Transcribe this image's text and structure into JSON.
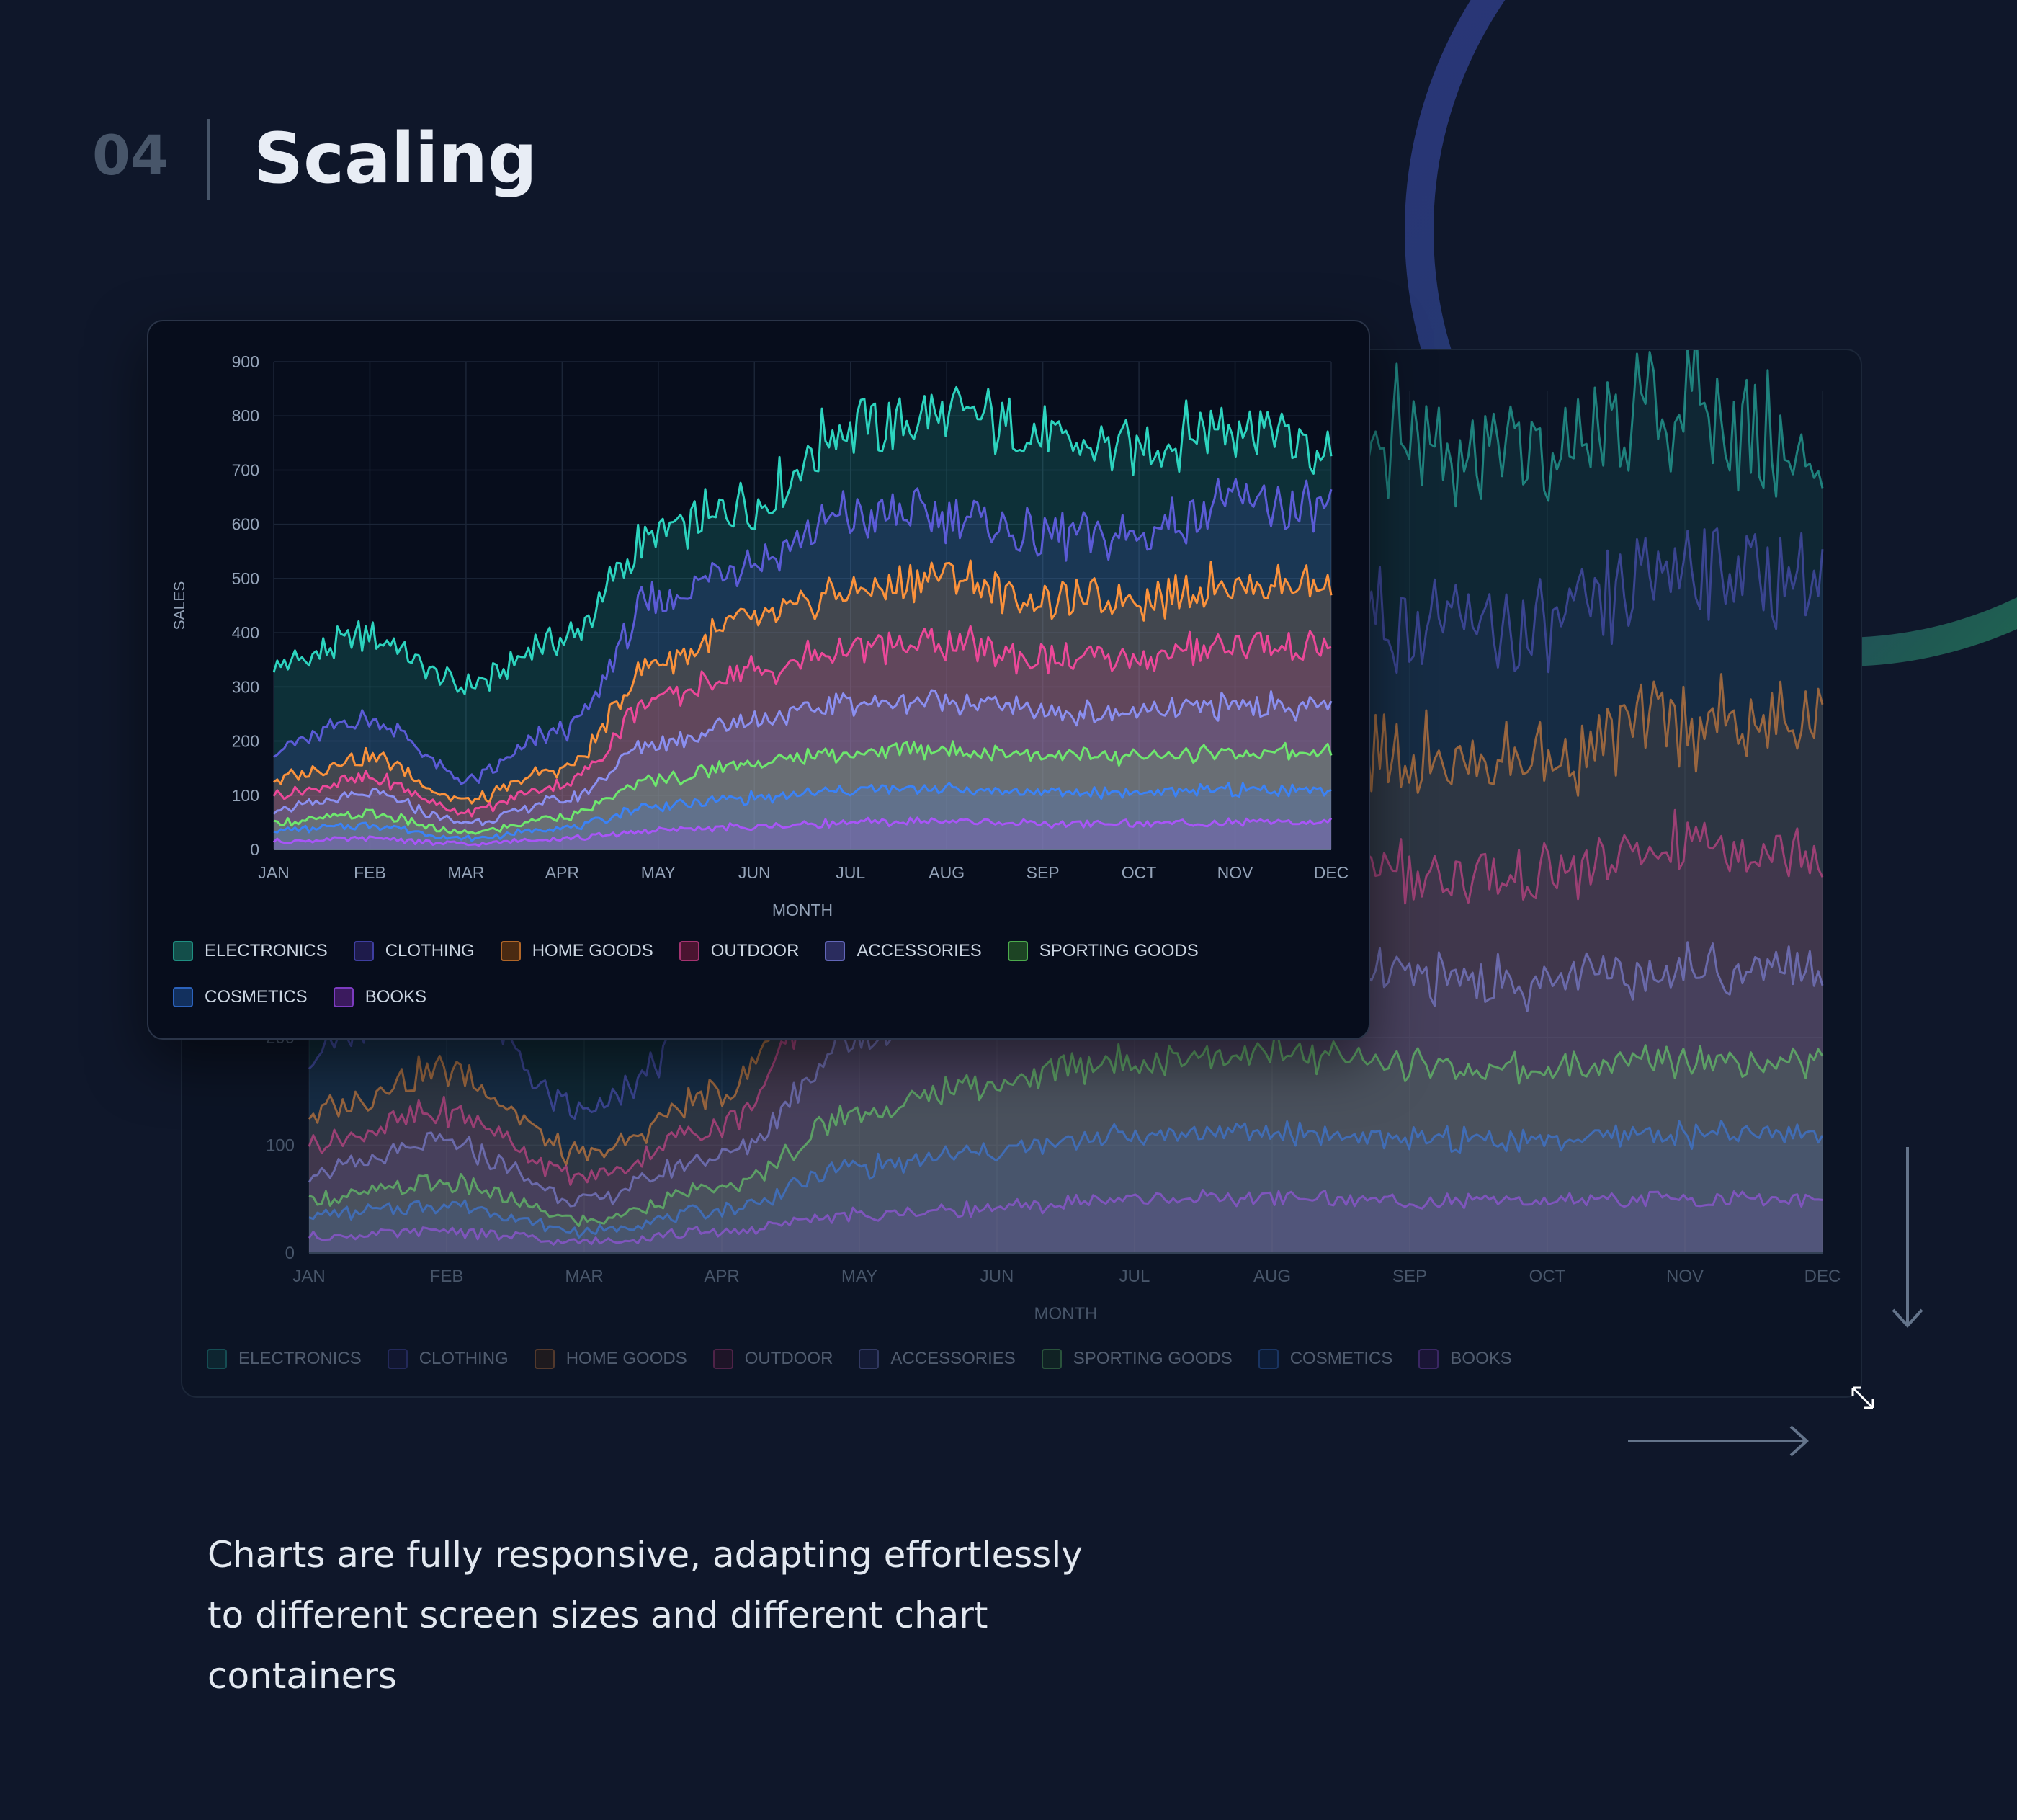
{
  "header": {
    "number": "04",
    "title": "Scaling"
  },
  "caption": "Charts are fully responsive, adapting effortlessly to different screen sizes and different chart containers",
  "colors": {
    "background": "#0f172a",
    "electronics": "#2dd4bf",
    "clothing": "#5b5bd6",
    "home_goods": "#fb923c",
    "outdoor": "#ec4899",
    "accessories": "#8b8ff0",
    "sporting_goods": "#6ee76e",
    "cosmetics": "#3b82f6",
    "books": "#a855f7"
  },
  "icons": {
    "resize": "resize-diagonal-icon",
    "down_arrow": "arrow-down-icon",
    "right_arrow": "arrow-right-icon"
  },
  "chart_data": [
    {
      "id": "front",
      "type": "area",
      "stacked": false,
      "xlabel": "MONTH",
      "ylabel": "SALES",
      "ylim": [
        0,
        900
      ],
      "y_ticks": [
        "0",
        "100",
        "200",
        "300",
        "400",
        "500",
        "600",
        "700",
        "800",
        "900"
      ],
      "x_ticks": [
        "JAN",
        "FEB",
        "MAR",
        "APR",
        "MAY",
        "JUN",
        "JUL",
        "AUG",
        "SEP",
        "OCT",
        "NOV",
        "DEC"
      ],
      "grid": true,
      "legend_position": "bottom",
      "x": [
        "JAN",
        "FEB",
        "MAR",
        "APR",
        "MAY",
        "JUN",
        "JUL",
        "AUG",
        "SEP",
        "OCT",
        "NOV",
        "DEC"
      ],
      "series": [
        {
          "name": "ELECTRONICS",
          "color": "#2dd4bf",
          "values": [
            340,
            390,
            300,
            390,
            580,
            640,
            780,
            800,
            760,
            740,
            790,
            730
          ]
        },
        {
          "name": "CLOTHING",
          "color": "#5b5bd6",
          "values": [
            190,
            240,
            130,
            220,
            460,
            540,
            620,
            620,
            580,
            580,
            640,
            630
          ]
        },
        {
          "name": "HOME GOODS",
          "color": "#fb923c",
          "values": [
            130,
            170,
            90,
            150,
            350,
            420,
            480,
            500,
            460,
            460,
            490,
            490
          ]
        },
        {
          "name": "OUTDOOR",
          "color": "#ec4899",
          "values": [
            100,
            130,
            70,
            120,
            280,
            330,
            370,
            380,
            350,
            350,
            380,
            370
          ]
        },
        {
          "name": "ACCESSORIES",
          "color": "#8b8ff0",
          "values": [
            75,
            100,
            50,
            90,
            200,
            240,
            270,
            275,
            255,
            250,
            265,
            265
          ]
        },
        {
          "name": "SPORTING GOODS",
          "color": "#6ee76e",
          "values": [
            50,
            65,
            30,
            60,
            130,
            160,
            180,
            185,
            175,
            170,
            180,
            180
          ]
        },
        {
          "name": "COSMETICS",
          "color": "#3b82f6",
          "values": [
            35,
            45,
            20,
            40,
            80,
            95,
            110,
            112,
            105,
            105,
            110,
            110
          ]
        },
        {
          "name": "BOOKS",
          "color": "#a855f7",
          "values": [
            15,
            20,
            10,
            20,
            35,
            42,
            50,
            52,
            48,
            48,
            50,
            50
          ]
        }
      ]
    },
    {
      "id": "back",
      "type": "area",
      "stacked": false,
      "xlabel": "MONTH",
      "ylim": [
        0,
        800
      ],
      "y_ticks": [
        "0",
        "100",
        "200"
      ],
      "x_ticks": [
        "JAN",
        "FEB",
        "MAR",
        "APR",
        "MAY",
        "JUN",
        "JUL",
        "AUG",
        "SEP",
        "OCT",
        "NOV",
        "DEC"
      ],
      "grid": true,
      "legend_position": "bottom",
      "x": [
        "JAN",
        "FEB",
        "MAR",
        "APR",
        "MAY",
        "JUN",
        "JUL",
        "AUG",
        "SEP",
        "OCT",
        "NOV",
        "DEC"
      ],
      "series": [
        {
          "name": "ELECTRONICS",
          "color": "#2dd4bf",
          "values": [
            340,
            390,
            300,
            390,
            580,
            640,
            780,
            800,
            760,
            740,
            790,
            730
          ]
        },
        {
          "name": "CLOTHING",
          "color": "#5b5bd6",
          "values": [
            190,
            240,
            130,
            220,
            460,
            540,
            620,
            620,
            580,
            580,
            640,
            630
          ]
        },
        {
          "name": "HOME GOODS",
          "color": "#fb923c",
          "values": [
            130,
            170,
            90,
            150,
            350,
            420,
            480,
            500,
            460,
            460,
            490,
            490
          ]
        },
        {
          "name": "OUTDOOR",
          "color": "#ec4899",
          "values": [
            100,
            130,
            70,
            120,
            280,
            330,
            370,
            380,
            350,
            350,
            380,
            370
          ]
        },
        {
          "name": "ACCESSORIES",
          "color": "#8b8ff0",
          "values": [
            75,
            100,
            50,
            90,
            200,
            240,
            270,
            275,
            255,
            250,
            265,
            265
          ]
        },
        {
          "name": "SPORTING GOODS",
          "color": "#6ee76e",
          "values": [
            50,
            65,
            30,
            60,
            130,
            160,
            180,
            185,
            175,
            170,
            180,
            180
          ]
        },
        {
          "name": "COSMETICS",
          "color": "#3b82f6",
          "values": [
            35,
            45,
            20,
            40,
            80,
            95,
            110,
            112,
            105,
            105,
            110,
            110
          ]
        },
        {
          "name": "BOOKS",
          "color": "#a855f7",
          "values": [
            15,
            20,
            10,
            20,
            35,
            42,
            50,
            52,
            48,
            48,
            50,
            50
          ]
        }
      ]
    }
  ]
}
